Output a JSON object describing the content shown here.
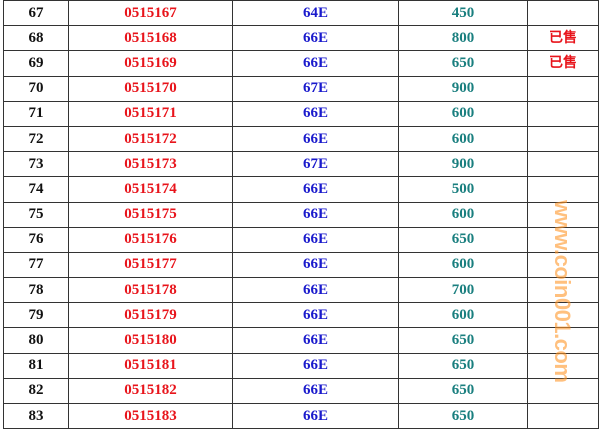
{
  "colors": {
    "number": "#111111",
    "serial": "#e8141b",
    "grade": "#1a1acc",
    "price": "#1a7f7f",
    "status": "#e8141b",
    "watermark": "#ff9628"
  },
  "rows": [
    {
      "no": "67",
      "serial": "0515167",
      "grade": "64E",
      "price": "450",
      "status": ""
    },
    {
      "no": "68",
      "serial": "0515168",
      "grade": "66E",
      "price": "800",
      "status": "已售"
    },
    {
      "no": "69",
      "serial": "0515169",
      "grade": "66E",
      "price": "650",
      "status": "已售"
    },
    {
      "no": "70",
      "serial": "0515170",
      "grade": "67E",
      "price": "900",
      "status": ""
    },
    {
      "no": "71",
      "serial": "0515171",
      "grade": "66E",
      "price": "600",
      "status": ""
    },
    {
      "no": "72",
      "serial": "0515172",
      "grade": "66E",
      "price": "600",
      "status": ""
    },
    {
      "no": "73",
      "serial": "0515173",
      "grade": "67E",
      "price": "900",
      "status": ""
    },
    {
      "no": "74",
      "serial": "0515174",
      "grade": "66E",
      "price": "500",
      "status": ""
    },
    {
      "no": "75",
      "serial": "0515175",
      "grade": "66E",
      "price": "600",
      "status": ""
    },
    {
      "no": "76",
      "serial": "0515176",
      "grade": "66E",
      "price": "650",
      "status": ""
    },
    {
      "no": "77",
      "serial": "0515177",
      "grade": "66E",
      "price": "600",
      "status": ""
    },
    {
      "no": "78",
      "serial": "0515178",
      "grade": "66E",
      "price": "700",
      "status": ""
    },
    {
      "no": "79",
      "serial": "0515179",
      "grade": "66E",
      "price": "600",
      "status": ""
    },
    {
      "no": "80",
      "serial": "0515180",
      "grade": "66E",
      "price": "650",
      "status": ""
    },
    {
      "no": "81",
      "serial": "0515181",
      "grade": "66E",
      "price": "650",
      "status": ""
    },
    {
      "no": "82",
      "serial": "0515182",
      "grade": "66E",
      "price": "650",
      "status": ""
    },
    {
      "no": "83",
      "serial": "0515183",
      "grade": "66E",
      "price": "650",
      "status": ""
    }
  ],
  "watermark": "www.coin001.com"
}
